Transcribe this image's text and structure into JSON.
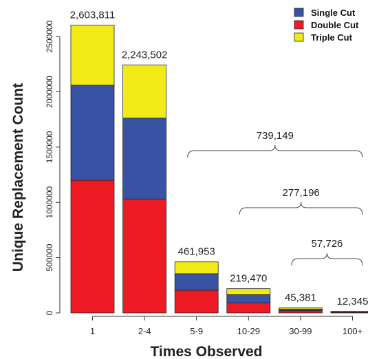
{
  "chart_data": {
    "type": "bar",
    "stacked": true,
    "categories": [
      "1",
      "2-4",
      "5-9",
      "10-29",
      "30-99",
      "100+"
    ],
    "series": [
      {
        "name": "Double Cut",
        "color": "#ed1c24",
        "values": [
          1200000,
          1030000,
          205000,
          90000,
          20000,
          6000
        ]
      },
      {
        "name": "Single Cut",
        "color": "#3953a4",
        "values": [
          860000,
          732000,
          150000,
          75000,
          15000,
          4000
        ]
      },
      {
        "name": "Triple Cut",
        "color": "#f2ea17",
        "values": [
          543811,
          481502,
          106953,
          54470,
          10381,
          2345
        ]
      }
    ],
    "totals": [
      "2,603,811",
      "2,243,502",
      "461,953",
      "219,470",
      "45,381",
      "12,345"
    ],
    "legend_order": [
      "Single Cut",
      "Double Cut",
      "Triple Cut"
    ],
    "legend_position": "top-right",
    "xlabel": "Times Observed",
    "ylabel": "Unique Replacement Count",
    "yticks": [
      0,
      500000,
      1000000,
      1500000,
      2000000,
      2500000
    ],
    "ytick_labels": [
      "0",
      "500000",
      "1000000",
      "1500000",
      "2000000",
      "2500000"
    ],
    "ylim": [
      0,
      2700000
    ],
    "braces": [
      {
        "from": "5-9",
        "to": "100+",
        "label": "739,149"
      },
      {
        "from": "10-29",
        "to": "100+",
        "label": "277,196"
      },
      {
        "from": "30-99",
        "to": "100+",
        "label": "57,726"
      }
    ],
    "grid": false
  }
}
